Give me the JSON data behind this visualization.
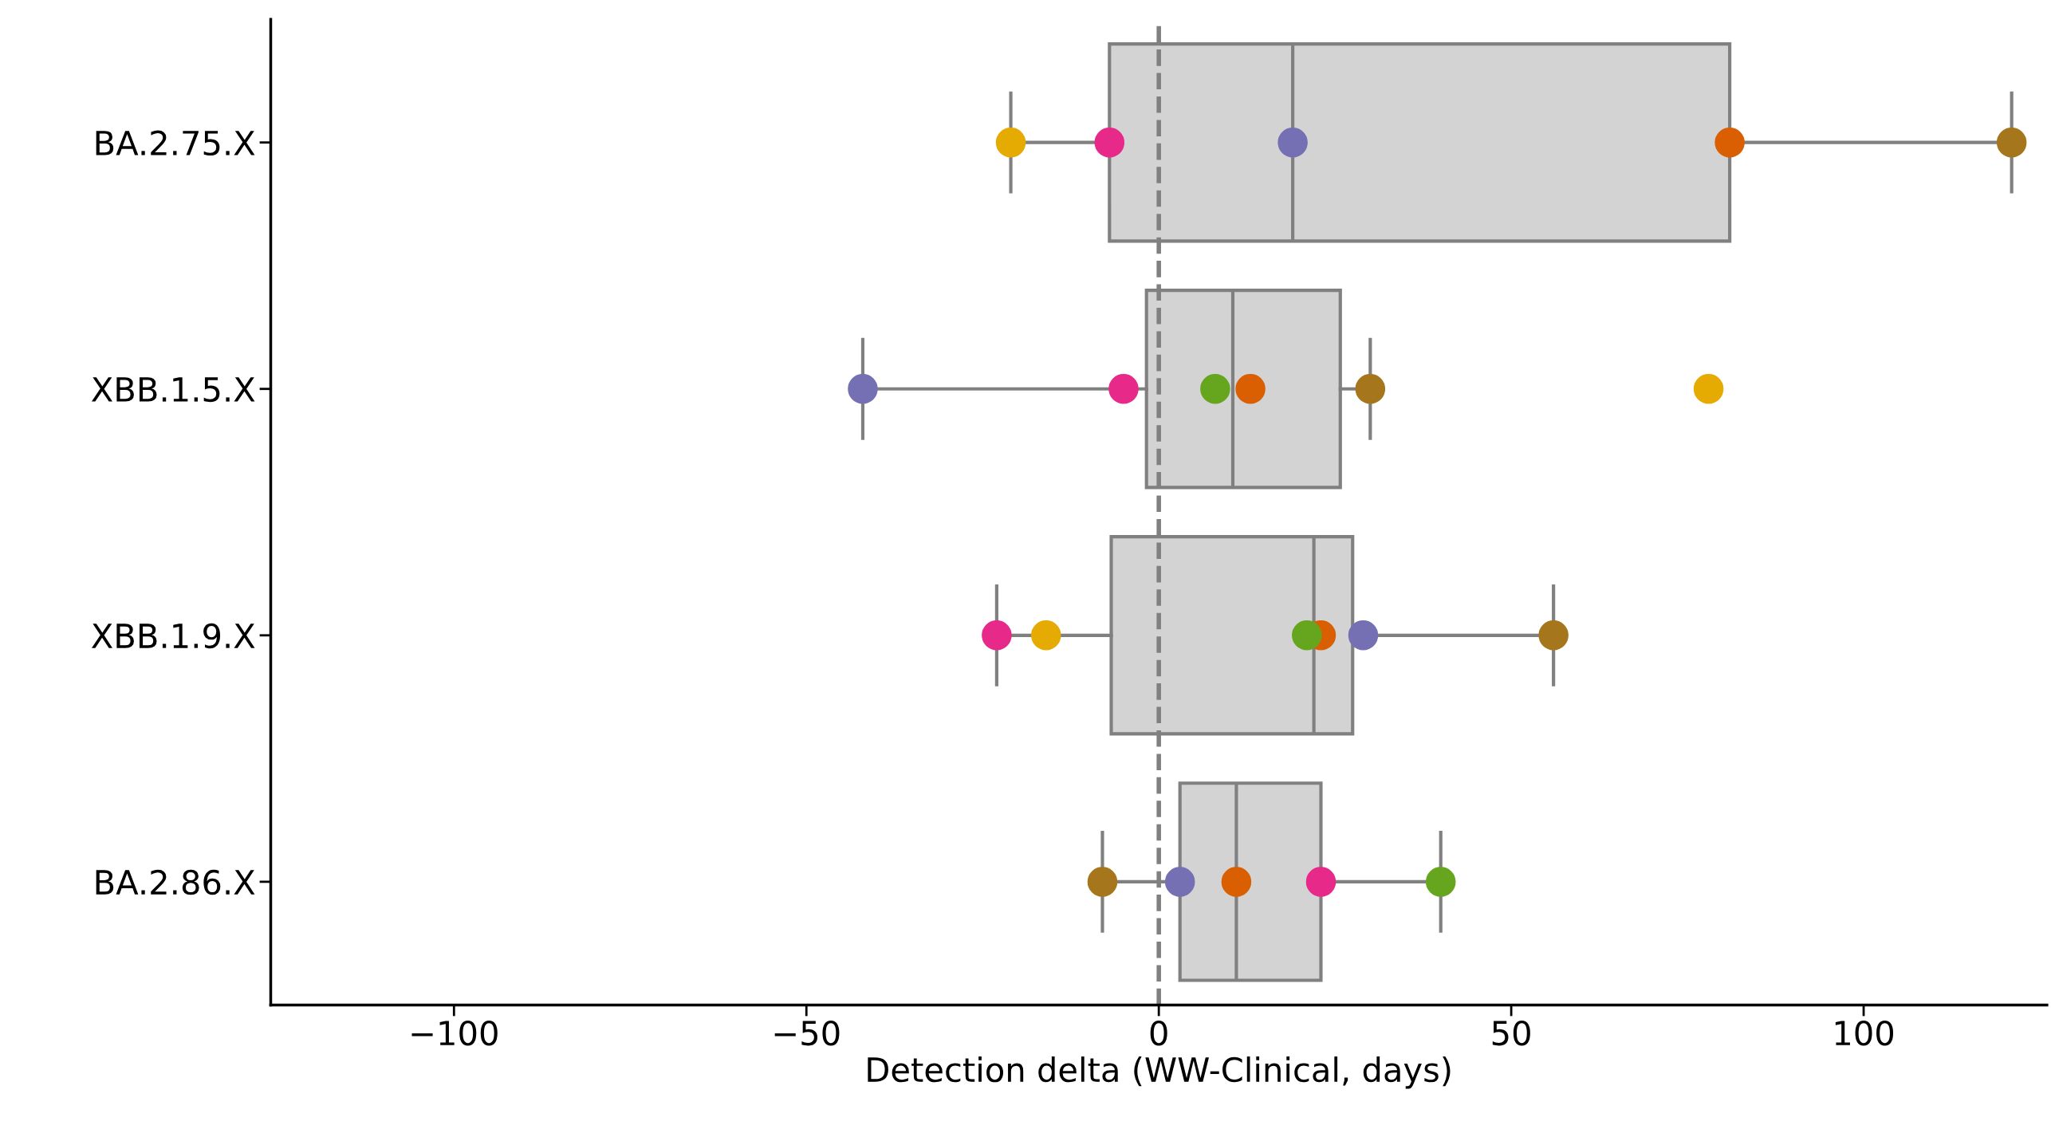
{
  "chart_data": {
    "type": "box",
    "orientation": "horizontal",
    "xlabel": "Detection delta (WW-Clinical, days)",
    "categories": [
      "BA.2.75.X",
      "XBB.1.5.X",
      "XBB.1.9.X",
      "BA.2.86.X"
    ],
    "xlim": [
      -126,
      126
    ],
    "xticks": [
      {
        "value": -100,
        "label": "−100"
      },
      {
        "value": -50,
        "label": "−50"
      },
      0,
      50,
      100
    ],
    "grid": false,
    "color": "#d3d3d3",
    "boxes": [
      {
        "low": -21,
        "q1": -7,
        "median": 19,
        "q3": 81,
        "high": 121
      },
      {
        "low": -42,
        "q1": -1.75,
        "median": 10.5,
        "q3": 25.75,
        "high": 30
      },
      {
        "low": -23,
        "q1": -6.75,
        "median": 22,
        "q3": 27.5,
        "high": 56
      },
      {
        "low": -8,
        "q1": 3,
        "median": 11,
        "q3": 23,
        "high": 40
      }
    ],
    "series": [
      {
        "type": "scatter",
        "color": "#e6ab02",
        "x": [
          "BA.2.75.X",
          "XBB.1.5.X",
          "XBB.1.9.X"
        ],
        "values": [
          -21,
          78,
          -16
        ]
      },
      {
        "type": "scatter",
        "color": "#e7298a",
        "x": [
          "BA.2.75.X",
          "XBB.1.5.X",
          "XBB.1.9.X",
          "BA.2.86.X"
        ],
        "values": [
          -7,
          -5,
          -23,
          23
        ]
      },
      {
        "type": "scatter",
        "color": "#7570b3",
        "x": [
          "BA.2.75.X",
          "XBB.1.5.X",
          "XBB.1.9.X",
          "BA.2.86.X"
        ],
        "values": [
          19,
          -42,
          29,
          3
        ]
      },
      {
        "type": "scatter",
        "color": "#d95f02",
        "x": [
          "BA.2.75.X",
          "XBB.1.5.X",
          "XBB.1.9.X",
          "BA.2.86.X"
        ],
        "values": [
          81,
          13,
          23,
          11
        ]
      },
      {
        "type": "scatter",
        "color": "#a6761d",
        "x": [
          "BA.2.75.X",
          "XBB.1.5.X",
          "XBB.1.9.X",
          "BA.2.86.X"
        ],
        "values": [
          121,
          30,
          56,
          -8
        ]
      },
      {
        "type": "scatter",
        "color": "#66a61e",
        "x": [
          "XBB.1.5.X",
          "XBB.1.9.X",
          "BA.2.86.X"
        ],
        "values": [
          8,
          21,
          40
        ]
      }
    ],
    "marker": "circle",
    "ref_lines": [
      {
        "axis": "x",
        "value": 0,
        "color": "#808080",
        "line_style": "dashed"
      }
    ]
  }
}
